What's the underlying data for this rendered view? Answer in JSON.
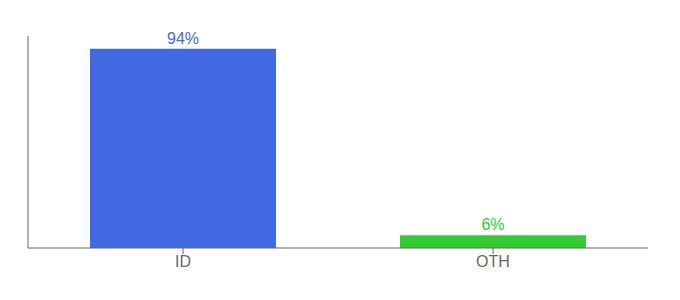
{
  "chart_data": {
    "type": "bar",
    "categories": [
      "ID",
      "OTH"
    ],
    "values": [
      94,
      6
    ],
    "value_labels": [
      "94%",
      "6%"
    ],
    "data_labels": true,
    "colors": [
      "#4169e1",
      "#33cc33"
    ],
    "ylim": [
      0,
      100
    ],
    "tick_labels": "x"
  }
}
